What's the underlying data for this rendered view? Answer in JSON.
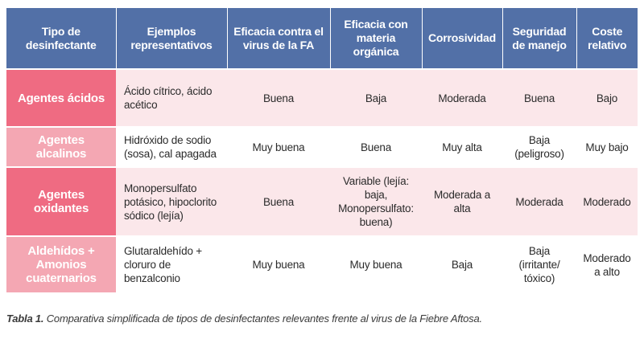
{
  "table": {
    "headers": [
      "Tipo de desinfectante",
      "Ejemplos representativos",
      "Eficacia contra el virus de la FA",
      "Eficacia con materia orgánica",
      "Corrosividad",
      "Seguridad de manejo",
      "Coste relativo"
    ],
    "rows": [
      {
        "type": "Agentes ácidos",
        "examples": "Ácido cítrico, ácido acético",
        "efficacy": "Buena",
        "organic": "Baja",
        "corrosivity": "Moderada",
        "safety": "Buena",
        "cost": "Bajo"
      },
      {
        "type": "Agentes alcalinos",
        "examples": "Hidróxido de sodio (sosa), cal apagada",
        "efficacy": "Muy buena",
        "organic": "Buena",
        "corrosivity": "Muy alta",
        "safety": "Baja (peligroso)",
        "cost": "Muy bajo"
      },
      {
        "type": "Agentes oxidantes",
        "examples": "Monopersulfato potásico, hipoclorito sódico (lejía)",
        "efficacy": "Buena",
        "organic": "Variable (lejía: baja, Monopersulfato: buena)",
        "corrosivity": "Moderada a alta",
        "safety": "Moderada",
        "cost": "Moderado"
      },
      {
        "type": "Aldehídos + Amonios cuaternarios",
        "examples": "Glutaraldehído + cloruro de benzalconio",
        "efficacy": "Muy buena",
        "organic": "Muy buena",
        "corrosivity": "Baja",
        "safety": "Baja (irritante/ tóxico)",
        "cost": "Moderado a alto"
      }
    ]
  },
  "caption": {
    "label": "Tabla 1.",
    "text": " Comparativa simplificada de tipos de desinfectantes relevantes frente al virus de la Fiebre Aftosa."
  },
  "colors": {
    "header_bg": "#5270a7",
    "rowhead_dark": "#ef6b82",
    "rowhead_light": "#f4a7b3",
    "row_tint": "#fbe7ea"
  }
}
